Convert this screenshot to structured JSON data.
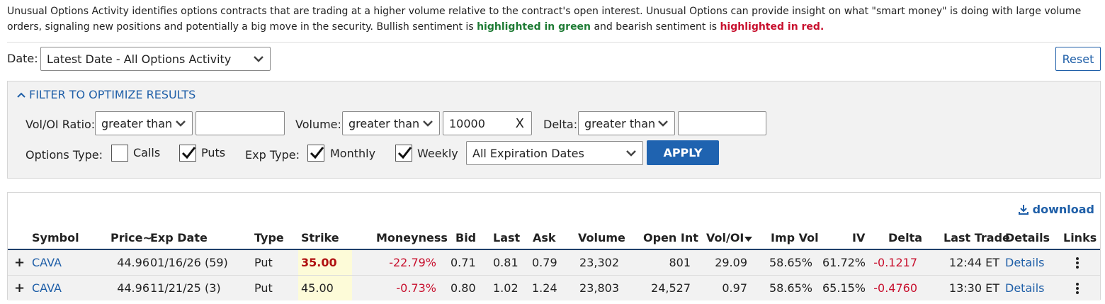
{
  "intro": {
    "text1": "Unusual Options Activity identifies options contracts that are trading at a higher volume relative to the contract's open interest. Unusual Options can provide insight on what \"smart money\" is doing with large volume orders, signaling new positions and potentially a big move in the security. Bullish sentiment is ",
    "green": "highlighted in green",
    "text2": " and bearish sentiment is ",
    "red": "highlighted in red."
  },
  "date": {
    "label": "Date:",
    "value": "Latest Date - All Options Activity"
  },
  "reset_label": "Reset",
  "filter": {
    "title": "FILTER TO OPTIMIZE RESULTS",
    "voloi_label": "Vol/OI Ratio:",
    "voloi_op": "greater than",
    "voloi_value": "",
    "volume_label": "Volume:",
    "volume_op": "greater than",
    "volume_value": "10000",
    "delta_label": "Delta:",
    "delta_op": "greater than",
    "delta_value": "",
    "options_type_label": "Options Type:",
    "calls_label": "Calls",
    "calls_checked": false,
    "puts_label": "Puts",
    "puts_checked": true,
    "exp_type_label": "Exp Type:",
    "monthly_label": "Monthly",
    "monthly_checked": true,
    "weekly_label": "Weekly",
    "weekly_checked": true,
    "expiration": "All Expiration Dates",
    "apply_label": "APPLY"
  },
  "download_label": "download",
  "table": {
    "headers": [
      "Symbol",
      "Price~",
      "Exp Date",
      "Type",
      "Strike",
      "Moneyness",
      "Bid",
      "Last",
      "Ask",
      "Volume",
      "Open Int",
      "Vol/OI",
      "Imp Vol",
      "IV",
      "Delta",
      "Last Trade",
      "Details",
      "Links"
    ],
    "rows": [
      {
        "symbol": "CAVA",
        "price": "44.96",
        "exp": "01/16/26 (59)",
        "type": "Put",
        "strike": "35.00",
        "moneyness": "-22.79%",
        "bid": "0.71",
        "last": "0.81",
        "ask": "0.79",
        "volume": "23,302",
        "open_int": "801",
        "vol_oi": "29.09",
        "imp_vol": "58.65%",
        "iv": "61.72%",
        "delta": "-0.1217",
        "last_trade": "12:44 ET",
        "details": "Details"
      },
      {
        "symbol": "CAVA",
        "price": "44.96",
        "exp": "11/21/25 (3)",
        "type": "Put",
        "strike": "45.00",
        "moneyness": "-0.73%",
        "bid": "0.80",
        "last": "1.02",
        "ask": "1.24",
        "volume": "23,803",
        "open_int": "24,527",
        "vol_oi": "0.97",
        "imp_vol": "58.65%",
        "iv": "65.15%",
        "delta": "-0.4760",
        "last_trade": "13:30 ET",
        "details": "Details"
      }
    ]
  },
  "colors": {
    "link": "#1f5fa8",
    "bullish": "#1e7b34",
    "bearish": "#c8102e",
    "apply_bg": "#1f63b0",
    "strike_highlight": "#fdfbd8"
  },
  "icons": {
    "select_arrow": "chevron-down-icon",
    "filter_toggle": "chevron-up-icon",
    "download": "download-icon",
    "clear": "close-icon",
    "links": "more-vertical-icon",
    "expand": "plus-icon"
  }
}
